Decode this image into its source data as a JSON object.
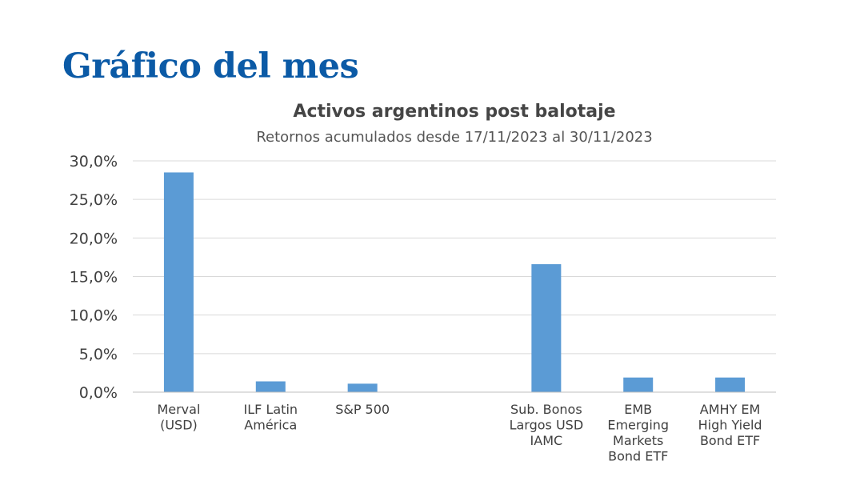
{
  "slide": {
    "title": "Gráfico del mes"
  },
  "chart_data": {
    "type": "bar",
    "title": "Activos argentinos post balotaje",
    "subtitle": "Retornos acumulados desde 17/11/2023 al 30/11/2023",
    "categories": [
      [
        "Merval",
        "(USD)"
      ],
      [
        "ILF Latin",
        "América"
      ],
      [
        "S&P 500"
      ],
      [
        ""
      ],
      [
        "Sub. Bonos",
        "Largos USD",
        "IAMC"
      ],
      [
        "EMB",
        "Emerging",
        "Markets",
        "Bond ETF"
      ],
      [
        "AMHY EM",
        "High Yield",
        "Bond ETF"
      ]
    ],
    "values": [
      28.5,
      1.4,
      1.1,
      null,
      16.6,
      1.9,
      1.9
    ],
    "yticks": [
      "0,0%",
      "5,0%",
      "10,0%",
      "15,0%",
      "20,0%",
      "25,0%",
      "30,0%"
    ],
    "ylim": [
      0,
      30
    ],
    "xlabel": "",
    "ylabel": "",
    "grid": true,
    "colors": {
      "bar": "#5b9bd5",
      "grid": "#d9d9d9",
      "axis": "#bfbfbf",
      "tick_text": "#404040",
      "category_text": "#404040"
    }
  }
}
